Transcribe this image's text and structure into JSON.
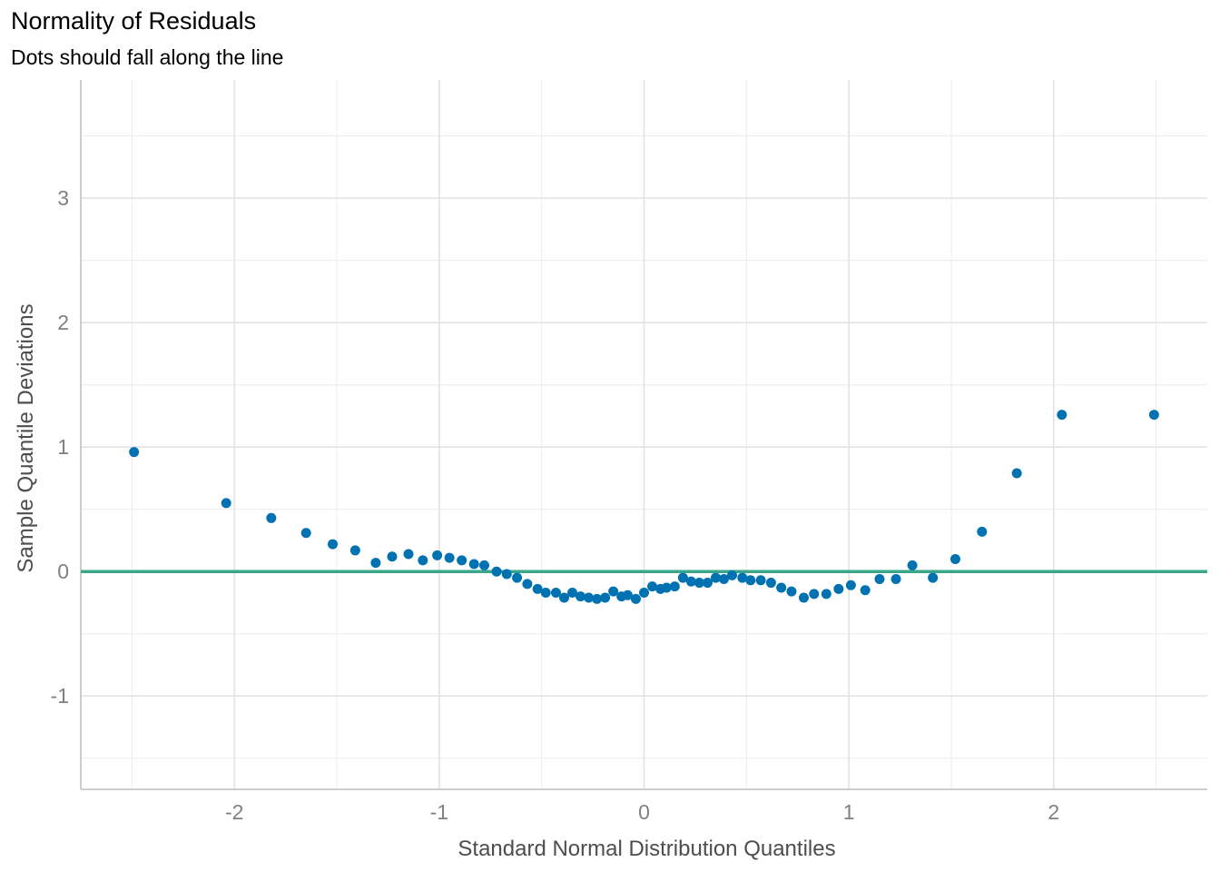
{
  "chart_data": {
    "type": "scatter",
    "title": "Normality of Residuals",
    "subtitle": "Dots should fall along the line",
    "xlabel": "Standard Normal Distribution Quantiles",
    "ylabel": "Sample Quantile Deviations",
    "xlim": [
      -2.75,
      2.75
    ],
    "ylim": [
      -1.75,
      3.95
    ],
    "x_ticks": [
      -2,
      -1,
      0,
      1,
      2
    ],
    "x_tick_labels": [
      "-2",
      "-1",
      "0",
      "1",
      "2"
    ],
    "y_ticks": [
      -1,
      0,
      1,
      2,
      3
    ],
    "y_tick_labels": [
      "-1",
      "0",
      "1",
      "2",
      "3"
    ],
    "grid": true,
    "reference_line": {
      "y": 0,
      "color": "#3aa68a"
    },
    "point_color": "#0072b2",
    "points": [
      [
        -2.49,
        0.96
      ],
      [
        -2.04,
        0.55
      ],
      [
        -1.82,
        0.43
      ],
      [
        -1.65,
        0.31
      ],
      [
        -1.52,
        0.22
      ],
      [
        -1.41,
        0.17
      ],
      [
        -1.31,
        0.07
      ],
      [
        -1.23,
        0.12
      ],
      [
        -1.15,
        0.14
      ],
      [
        -1.08,
        0.09
      ],
      [
        -1.01,
        0.13
      ],
      [
        -0.95,
        0.11
      ],
      [
        -0.89,
        0.09
      ],
      [
        -0.83,
        0.06
      ],
      [
        -0.78,
        0.05
      ],
      [
        -0.72,
        0.0
      ],
      [
        -0.67,
        -0.02
      ],
      [
        -0.62,
        -0.05
      ],
      [
        -0.57,
        -0.1
      ],
      [
        -0.52,
        -0.14
      ],
      [
        -0.48,
        -0.17
      ],
      [
        -0.43,
        -0.17
      ],
      [
        -0.39,
        -0.21
      ],
      [
        -0.35,
        -0.17
      ],
      [
        -0.31,
        -0.2
      ],
      [
        -0.27,
        -0.21
      ],
      [
        -0.23,
        -0.22
      ],
      [
        -0.19,
        -0.21
      ],
      [
        -0.15,
        -0.16
      ],
      [
        -0.11,
        -0.2
      ],
      [
        -0.08,
        -0.19
      ],
      [
        -0.04,
        -0.22
      ],
      [
        0.0,
        -0.17
      ],
      [
        0.04,
        -0.12
      ],
      [
        0.08,
        -0.14
      ],
      [
        0.11,
        -0.13
      ],
      [
        0.15,
        -0.12
      ],
      [
        0.19,
        -0.05
      ],
      [
        0.23,
        -0.08
      ],
      [
        0.27,
        -0.09
      ],
      [
        0.31,
        -0.09
      ],
      [
        0.35,
        -0.05
      ],
      [
        0.39,
        -0.06
      ],
      [
        0.43,
        -0.03
      ],
      [
        0.48,
        -0.05
      ],
      [
        0.52,
        -0.07
      ],
      [
        0.57,
        -0.07
      ],
      [
        0.62,
        -0.09
      ],
      [
        0.67,
        -0.13
      ],
      [
        0.72,
        -0.16
      ],
      [
        0.78,
        -0.21
      ],
      [
        0.83,
        -0.18
      ],
      [
        0.89,
        -0.18
      ],
      [
        0.95,
        -0.14
      ],
      [
        1.01,
        -0.11
      ],
      [
        1.08,
        -0.15
      ],
      [
        1.15,
        -0.06
      ],
      [
        1.23,
        -0.06
      ],
      [
        1.31,
        0.05
      ],
      [
        1.41,
        -0.05
      ],
      [
        1.52,
        0.1
      ],
      [
        1.65,
        0.32
      ],
      [
        1.82,
        0.79
      ],
      [
        2.04,
        1.26
      ],
      [
        2.49,
        1.26
      ]
    ]
  }
}
